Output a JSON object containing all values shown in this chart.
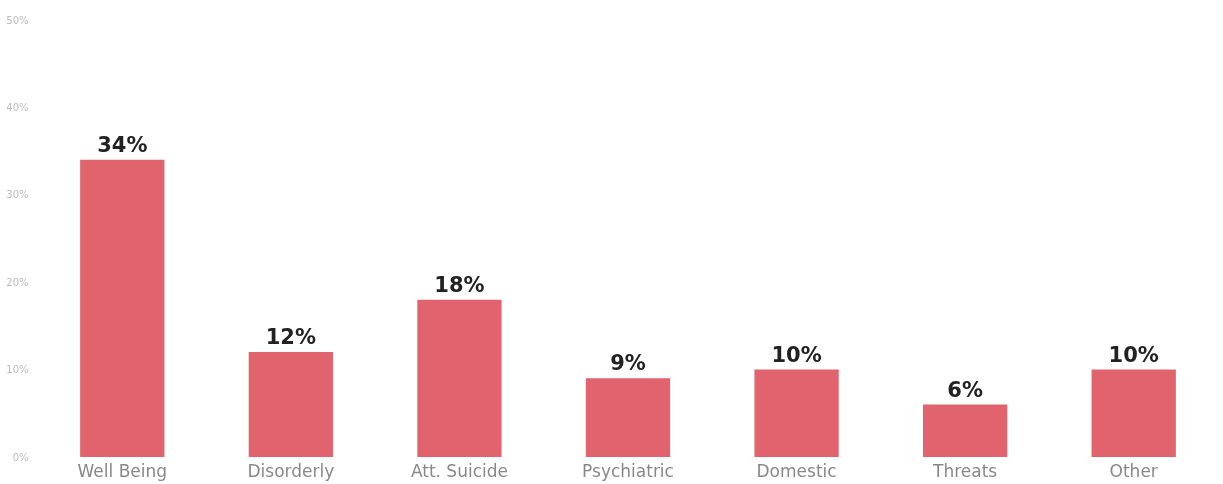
{
  "chart_data": {
    "type": "bar",
    "categories": [
      "Well Being",
      "Disorderly",
      "Att. Suicide",
      "Psychiatric",
      "Domestic",
      "Threats",
      "Other"
    ],
    "values": [
      34,
      12,
      18,
      9,
      10,
      6,
      10
    ],
    "value_labels": [
      "34%",
      "12%",
      "18%",
      "9%",
      "10%",
      "6%",
      "10%"
    ],
    "color": "#e0636e",
    "ylim": [
      0,
      50
    ],
    "yticks": [
      {
        "value": 0,
        "label": "0%"
      },
      {
        "value": 10,
        "label": "10%"
      },
      {
        "value": 20,
        "label": "20%"
      },
      {
        "value": 30,
        "label": "30%"
      },
      {
        "value": 40,
        "label": "40%"
      },
      {
        "value": 50,
        "label": "50%"
      }
    ],
    "grid": false
  }
}
